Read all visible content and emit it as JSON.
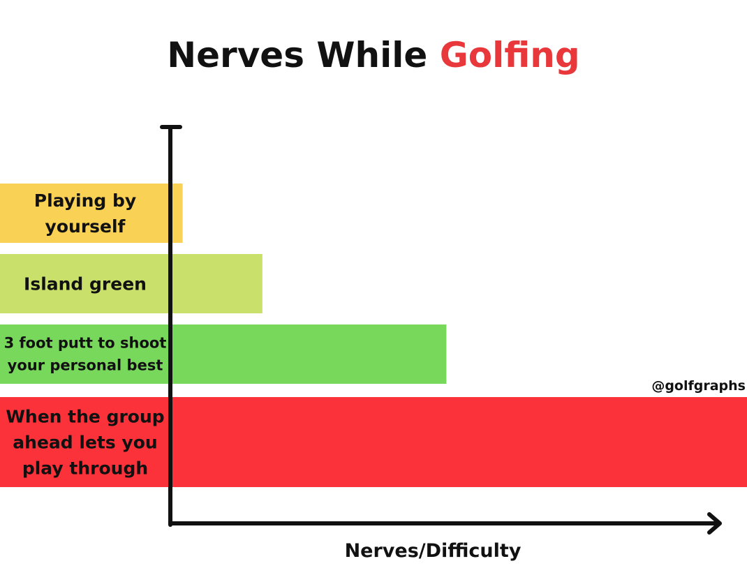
{
  "chart_data": {
    "type": "bar",
    "orientation": "horizontal",
    "title": "Nerves While Golfing",
    "title_parts": [
      {
        "text": "Nerves While ",
        "color": "#111111"
      },
      {
        "text": "Golfing",
        "color": "#e8383b"
      }
    ],
    "xlabel": "Nerves/Difficulty",
    "ylabel": "",
    "categories": [
      "Playing by yourself",
      "Island green",
      "3 foot putt to shoot your personal best",
      "When the group ahead lets you play through"
    ],
    "category_label_lines": [
      [
        "Playing by",
        "yourself"
      ],
      [
        "Island green"
      ],
      [
        "3 foot putt to shoot",
        "your personal best"
      ],
      [
        "When the group",
        "ahead lets you",
        "play through"
      ]
    ],
    "values": [
      1,
      7.5,
      22.5,
      47
    ],
    "xlim": [
      0,
      47
    ],
    "colors": [
      "#f8d155",
      "#c9e06a",
      "#78d85c",
      "#fb323a"
    ],
    "grid": false,
    "legend": "none",
    "annotation": "@golfgraphs"
  }
}
